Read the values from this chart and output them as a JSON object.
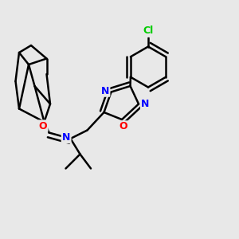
{
  "bg_color": "#e8e8e8",
  "atom_colors": {
    "C": "#000000",
    "N": "#0000ff",
    "O": "#ff0000",
    "Cl": "#00cc00"
  },
  "bond_color": "#000000",
  "bond_width": 1.8,
  "figsize": [
    3.0,
    3.0
  ],
  "dpi": 100
}
